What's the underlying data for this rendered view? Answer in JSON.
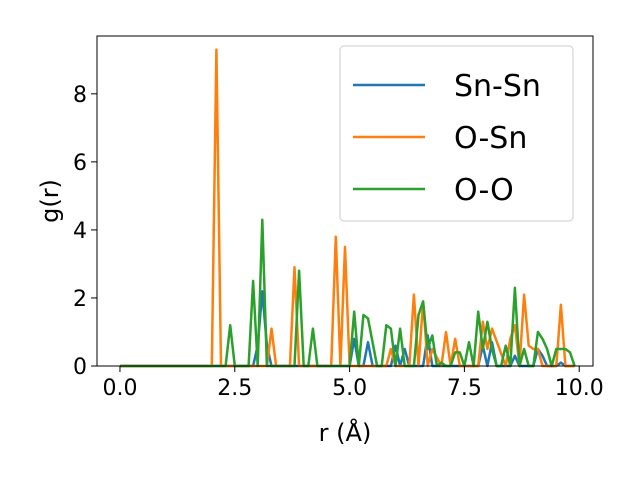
{
  "chart_data": {
    "type": "line",
    "title": "",
    "xlabel": "r (Å)",
    "ylabel": "g(r)",
    "xlim": [
      -0.5,
      10.3
    ],
    "ylim": [
      0,
      9.7
    ],
    "xticks": [
      0.0,
      2.5,
      5.0,
      7.5,
      10.0
    ],
    "xtick_labels": [
      "0.0",
      "2.5",
      "5.0",
      "7.5",
      "10.0"
    ],
    "yticks": [
      0,
      2,
      4,
      6,
      8
    ],
    "ytick_labels": [
      "0",
      "2",
      "4",
      "6",
      "8"
    ],
    "grid": false,
    "legend": "top-right",
    "series": [
      {
        "name": "Sn-Sn",
        "color": "#1f77b4",
        "x": [
          0,
          2.9,
          3.0,
          3.1,
          3.2,
          3.3,
          5.0,
          5.1,
          5.2,
          5.3,
          5.4,
          5.5,
          5.9,
          6.0,
          6.1,
          6.2,
          6.3,
          6.6,
          6.7,
          6.8,
          7.8,
          7.9,
          8.0,
          8.1,
          8.2,
          8.3,
          8.5,
          8.6,
          8.7,
          9.0,
          9.1,
          9.2,
          9.3,
          9.5,
          9.6,
          9.7,
          9.9
        ],
        "y": [
          0,
          0,
          0.6,
          2.2,
          0.6,
          0,
          0,
          0.8,
          0,
          0,
          0.7,
          0,
          0,
          0.6,
          0,
          0.5,
          0,
          0,
          0.9,
          0,
          0,
          0.6,
          0,
          0.7,
          0,
          0,
          0,
          0.3,
          0,
          0,
          0.5,
          0.3,
          0,
          0,
          0.1,
          0,
          0
        ]
      },
      {
        "name": "O-Sn",
        "color": "#ff7f0e",
        "x": [
          0,
          2.0,
          2.1,
          2.2,
          3.2,
          3.3,
          3.4,
          3.7,
          3.8,
          3.9,
          4.6,
          4.7,
          4.8,
          4.9,
          5.0,
          5.8,
          5.9,
          6.0,
          6.3,
          6.4,
          6.5,
          6.6,
          6.7,
          6.8,
          7.0,
          7.1,
          7.2,
          7.3,
          7.4,
          7.8,
          7.9,
          8.0,
          8.1,
          8.4,
          8.5,
          8.6,
          8.7,
          8.8,
          8.9,
          9.0,
          9.1,
          9.2,
          9.5,
          9.6,
          9.7,
          9.9
        ],
        "y": [
          0,
          0,
          9.3,
          0,
          0,
          1.1,
          0,
          0,
          2.9,
          0,
          0,
          3.8,
          0,
          3.5,
          0,
          0,
          0.5,
          0,
          0,
          2.1,
          0,
          1.9,
          0,
          0.5,
          0,
          1.0,
          0,
          0.8,
          0,
          0,
          1.3,
          0.5,
          1.1,
          0,
          0.8,
          1.2,
          0,
          2.1,
          0.6,
          0.5,
          0.5,
          0,
          0,
          1.8,
          0,
          0
        ]
      },
      {
        "name": "O-O",
        "color": "#2ca02c",
        "x": [
          0,
          2.3,
          2.4,
          2.5,
          2.8,
          2.9,
          3.0,
          3.1,
          3.2,
          3.3,
          3.8,
          3.9,
          4.0,
          4.1,
          4.2,
          4.3,
          4.4,
          5.0,
          5.1,
          5.2,
          5.3,
          5.4,
          5.6,
          5.7,
          5.8,
          5.9,
          6.0,
          6.1,
          6.2,
          6.4,
          6.5,
          6.6,
          6.7,
          6.8,
          6.9,
          7.0,
          7.1,
          7.2,
          7.3,
          7.4,
          7.5,
          7.6,
          7.7,
          7.8,
          7.9,
          8.0,
          8.1,
          8.2,
          8.3,
          8.4,
          8.5,
          8.6,
          8.7,
          8.8,
          8.9,
          9.0,
          9.1,
          9.2,
          9.3,
          9.4,
          9.5,
          9.6,
          9.7,
          9.8,
          9.9
        ],
        "y": [
          0,
          0,
          1.2,
          0,
          0,
          2.5,
          0,
          4.3,
          0,
          0,
          0,
          2.8,
          0,
          0,
          1.1,
          0,
          0,
          0,
          1.6,
          0,
          1.5,
          1.4,
          0,
          0,
          1.2,
          1.1,
          0,
          1.1,
          0,
          0,
          1.5,
          1.9,
          0.5,
          0.9,
          0,
          0.1,
          0,
          0,
          0.4,
          0.4,
          0,
          0.7,
          0,
          1.6,
          0.5,
          1.3,
          0.5,
          0,
          0,
          0.6,
          0,
          2.3,
          0,
          0.5,
          0,
          0,
          1.0,
          0.8,
          0.5,
          0,
          0.5,
          0.5,
          0.5,
          0.4,
          0
        ]
      }
    ]
  }
}
